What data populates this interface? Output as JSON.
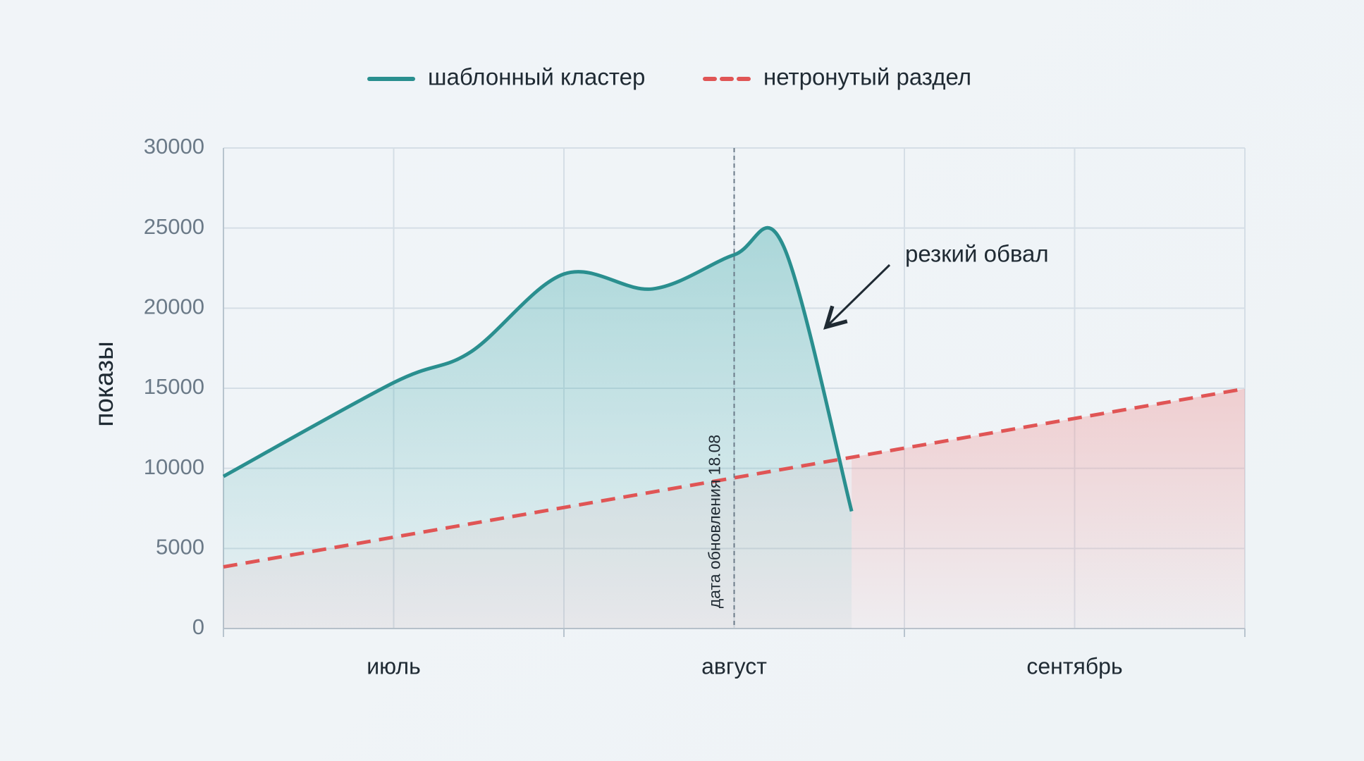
{
  "chart_data": {
    "type": "line",
    "ylabel": "показы",
    "xlim": [
      0,
      6
    ],
    "xticks": [
      {
        "value": 1,
        "label": "июль"
      },
      {
        "value": 3,
        "label": "август"
      },
      {
        "value": 5,
        "label": "сентябрь"
      }
    ],
    "x_grid": [
      0,
      2,
      4,
      6
    ],
    "ylim": [
      0,
      30000
    ],
    "yticks": [
      0,
      5000,
      10000,
      15000,
      20000,
      25000,
      30000
    ],
    "grid": true,
    "legend": "top",
    "series": [
      {
        "name": "шаблонный кластер",
        "color": "#2a8f8f",
        "style": "solid",
        "x": [
          0,
          1,
          1.45,
          2,
          2.52,
          3,
          3.29,
          3.69
        ],
        "values": [
          9500,
          15350,
          17250,
          22130,
          21200,
          23330,
          23870,
          7320
        ]
      },
      {
        "name": "нетронутый раздел",
        "color": "#e05555",
        "style": "dashed",
        "x": [
          0,
          6
        ],
        "values": [
          3850,
          14970
        ]
      }
    ],
    "annotations": [
      {
        "text": "дата обновления 18.08",
        "x": 3
      },
      {
        "text": "резкий обвал"
      }
    ]
  }
}
